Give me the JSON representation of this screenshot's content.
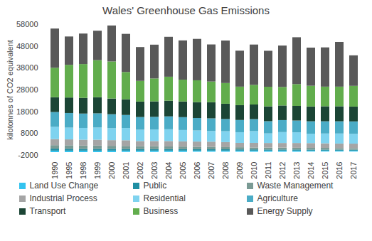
{
  "chart_data": {
    "type": "bar",
    "stacked": true,
    "title": "Wales' Greenhouse Gas Emissions",
    "y_label": "kilotonnes of CO2 equivalent",
    "categories": [
      "1990",
      "1995",
      "1998",
      "1999",
      "2000",
      "2001",
      "2002",
      "2003",
      "2004",
      "2005",
      "2006",
      "2007",
      "2008",
      "2009",
      "2010",
      "2011",
      "2012",
      "2013",
      "2014",
      "2015",
      "2016",
      "2017"
    ],
    "ylim": [
      -2000,
      58000
    ],
    "yticks": [
      -2000,
      8000,
      18000,
      28000,
      38000,
      48000,
      58000
    ],
    "grid": false,
    "legend": "bottom",
    "series": [
      {
        "name": "Land Use Change",
        "color": "#33c3ef",
        "values": [
          -700,
          -700,
          -700,
          -700,
          -700,
          -600,
          -600,
          -600,
          -600,
          -600,
          -500,
          -500,
          -500,
          -500,
          -500,
          -500,
          -500,
          -500,
          -400,
          -400,
          -400,
          -400
        ]
      },
      {
        "name": "Public",
        "color": "#1f8fa3",
        "values": [
          900,
          850,
          800,
          800,
          800,
          750,
          700,
          700,
          700,
          650,
          650,
          600,
          600,
          550,
          550,
          500,
          500,
          500,
          450,
          450,
          450,
          400
        ]
      },
      {
        "name": "Waste Management",
        "color": "#7a9a94",
        "values": [
          1600,
          1600,
          1500,
          1500,
          1400,
          1400,
          1300,
          1300,
          1200,
          1200,
          1100,
          1100,
          1000,
          1000,
          900,
          900,
          900,
          800,
          800,
          800,
          700,
          700
        ]
      },
      {
        "name": "Industrial Process",
        "color": "#a5a5a5",
        "values": [
          2800,
          2700,
          2700,
          2700,
          2600,
          2600,
          2400,
          2400,
          2500,
          2400,
          2400,
          2400,
          2300,
          2000,
          2100,
          2100,
          2100,
          2200,
          2200,
          2100,
          2100,
          2100
        ]
      },
      {
        "name": "Residential",
        "color": "#7fd3ef",
        "values": [
          5600,
          5400,
          5400,
          5600,
          5500,
          5600,
          5200,
          5300,
          5400,
          5200,
          5100,
          4900,
          5000,
          4900,
          5400,
          4400,
          5000,
          4900,
          4300,
          4500,
          4600,
          4500
        ]
      },
      {
        "name": "Agriculture",
        "color": "#4bacc6",
        "values": [
          6800,
          6700,
          6600,
          6500,
          6400,
          6000,
          5800,
          5800,
          5900,
          5900,
          5700,
          5800,
          5600,
          5600,
          5500,
          5600,
          5500,
          5400,
          5700,
          5600,
          5600,
          5700
        ]
      },
      {
        "name": "Transport",
        "color": "#1b4535",
        "values": [
          6800,
          7100,
          7200,
          7400,
          7200,
          7200,
          7100,
          7100,
          7200,
          7200,
          7300,
          7400,
          7000,
          6800,
          6700,
          6800,
          6700,
          6700,
          6800,
          6900,
          6900,
          6800
        ]
      },
      {
        "name": "Business",
        "color": "#62ad4d",
        "values": [
          13500,
          15000,
          15500,
          17000,
          17000,
          12500,
          9500,
          10500,
          11000,
          10000,
          10000,
          9500,
          9500,
          8500,
          9000,
          9000,
          8500,
          10000,
          9500,
          9000,
          9000,
          9500
        ]
      },
      {
        "name": "Energy Supply",
        "color": "#595959",
        "values": [
          18000,
          13000,
          14000,
          13500,
          16500,
          17500,
          15500,
          15500,
          18300,
          18000,
          19000,
          17000,
          19500,
          16500,
          18500,
          16500,
          19000,
          21500,
          17500,
          18000,
          20500,
          14000
        ]
      }
    ]
  }
}
